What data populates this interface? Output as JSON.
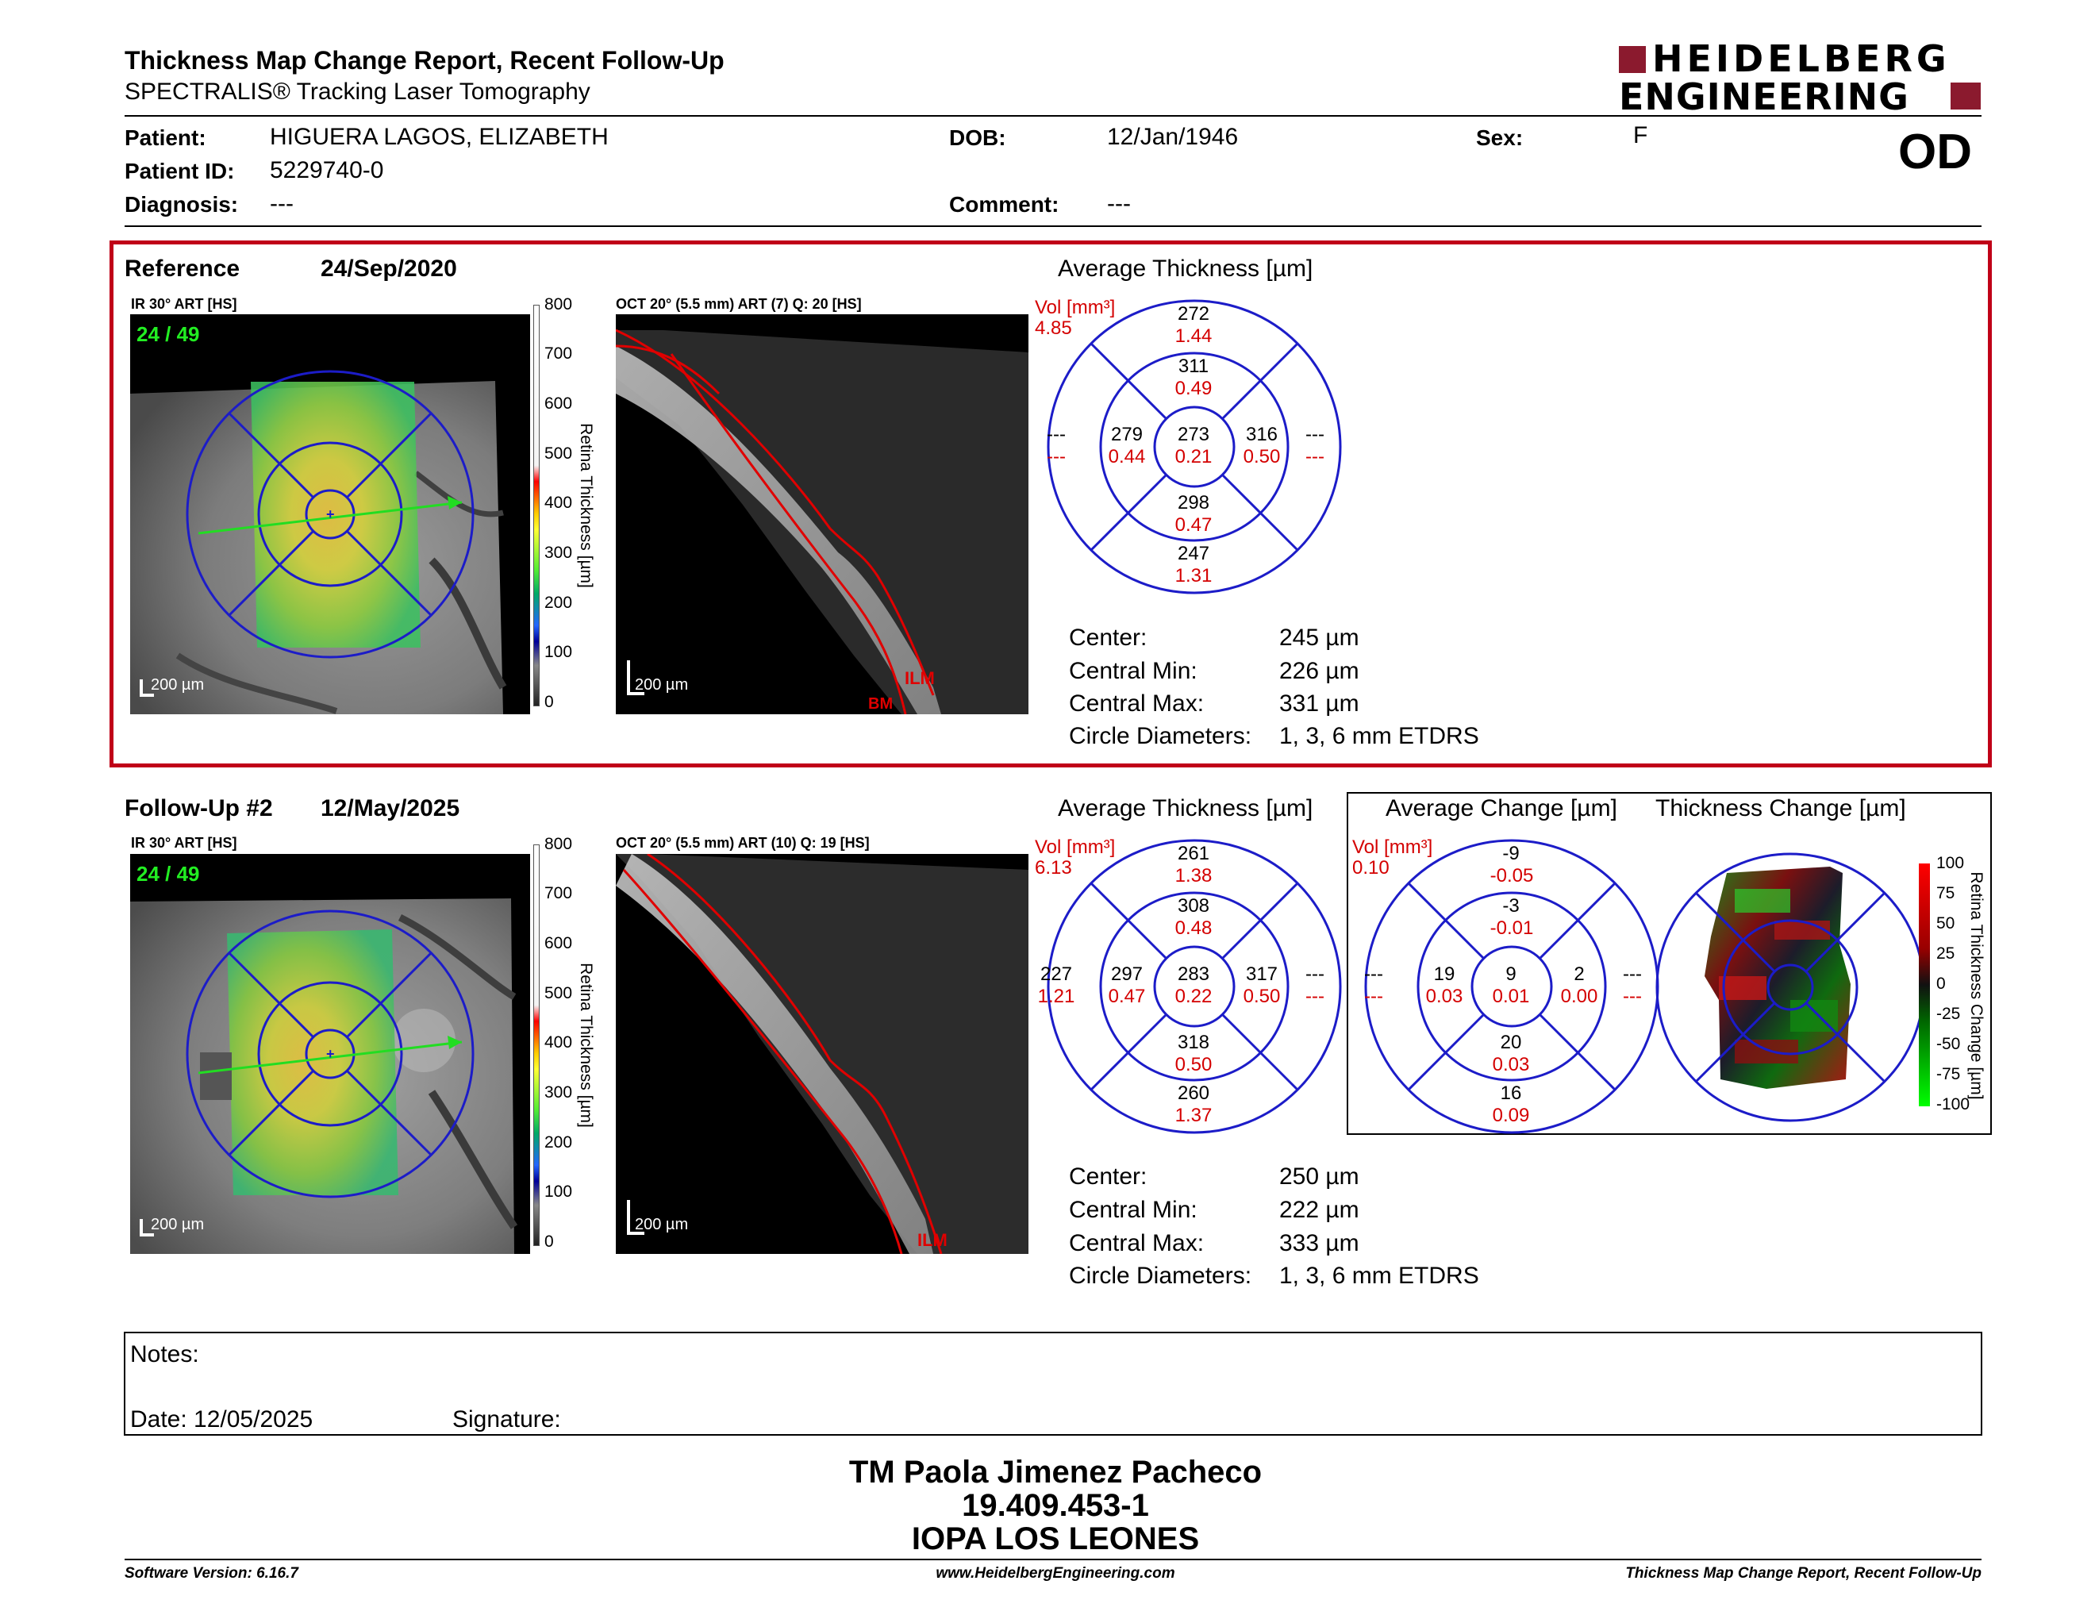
{
  "report": {
    "title": "Thickness Map Change Report, Recent Follow-Up",
    "subtitle": "SPECTRALIS® Tracking Laser Tomography",
    "brand_line1": "HEIDELBERG",
    "brand_line2": "ENGINEERING",
    "eye": "OD"
  },
  "patient": {
    "patient_label": "Patient:",
    "patient_value": "HIGUERA LAGOS, ELIZABETH",
    "id_label": "Patient ID:",
    "id_value": "5229740-0",
    "diagnosis_label": "Diagnosis:",
    "diagnosis_value": "---",
    "dob_label": "DOB:",
    "dob_value": "12/Jan/1946",
    "comment_label": "Comment:",
    "comment_value": "---",
    "sex_label": "Sex:",
    "sex_value": "F"
  },
  "reference": {
    "heading": "Reference",
    "date": "24/Sep/2020",
    "ir_label": "IR 30° ART [HS]",
    "ir_counter": "24 / 49",
    "oct_label": "OCT 20° (5.5 mm) ART (7) Q: 20 [HS]",
    "scale_bar": "200 µm",
    "oct_scale_bar": "200 µm",
    "ilm": "ILM",
    "bm": "BM",
    "avg_title": "Average Thickness [µm]",
    "vol_label": "Vol [mm³]",
    "vol_total": "4.85",
    "etdrs": {
      "outer_top": "272",
      "outer_top_v": "1.44",
      "inner_top": "311",
      "inner_top_v": "0.49",
      "outer_left": "---",
      "outer_left_v": "---",
      "inner_left": "279",
      "inner_left_v": "0.44",
      "center": "273",
      "center_v": "0.21",
      "inner_right": "316",
      "inner_right_v": "0.50",
      "outer_right": "---",
      "outer_right_v": "---",
      "inner_bottom": "298",
      "inner_bottom_v": "0.47",
      "outer_bottom": "247",
      "outer_bottom_v": "1.31"
    },
    "stats": {
      "center_label": "Center:",
      "center_value": "245 µm",
      "min_label": "Central Min:",
      "min_value": "226 µm",
      "max_label": "Central Max:",
      "max_value": "331 µm",
      "diam_label": "Circle Diameters:",
      "diam_value": "1, 3, 6 mm ETDRS"
    }
  },
  "followup": {
    "heading": "Follow-Up #2",
    "date": "12/May/2025",
    "ir_label": "IR 30° ART [HS]",
    "ir_counter": "24 / 49",
    "oct_label": "OCT 20° (5.5 mm) ART (10) Q: 19 [HS]",
    "scale_bar": "200 µm",
    "oct_scale_bar": "200 µm",
    "ilm": "ILM",
    "avg_title": "Average Thickness [µm]",
    "vol_label": "Vol [mm³]",
    "vol_total": "6.13",
    "etdrs": {
      "outer_top": "261",
      "outer_top_v": "1.38",
      "inner_top": "308",
      "inner_top_v": "0.48",
      "outer_left": "227",
      "outer_left_v": "1.21",
      "inner_left": "297",
      "inner_left_v": "0.47",
      "center": "283",
      "center_v": "0.22",
      "inner_right": "317",
      "inner_right_v": "0.50",
      "outer_right": "---",
      "outer_right_v": "---",
      "inner_bottom": "318",
      "inner_bottom_v": "0.50",
      "outer_bottom": "260",
      "outer_bottom_v": "1.37"
    },
    "change_title": "Average Change [µm]",
    "change_vol_label": "Vol [mm³]",
    "change_vol_total": "0.10",
    "change": {
      "outer_top": "-9",
      "outer_top_v": "-0.05",
      "inner_top": "-3",
      "inner_top_v": "-0.01",
      "outer_left": "---",
      "outer_left_v": "---",
      "inner_left": "19",
      "inner_left_v": "0.03",
      "center": "9",
      "center_v": "0.01",
      "inner_right": "2",
      "inner_right_v": "0.00",
      "outer_right": "---",
      "outer_right_v": "---",
      "inner_bottom": "20",
      "inner_bottom_v": "0.03",
      "outer_bottom": "16",
      "outer_bottom_v": "0.09"
    },
    "thick_change_title": "Thickness Change [µm]",
    "stats": {
      "center_label": "Center:",
      "center_value": "250 µm",
      "min_label": "Central Min:",
      "min_value": "222 µm",
      "max_label": "Central Max:",
      "max_value": "333 µm",
      "diam_label": "Circle Diameters:",
      "diam_value": "1, 3, 6 mm ETDRS"
    }
  },
  "thickness_scale": {
    "title": "Retina Thickness [µm]",
    "ticks": [
      "800",
      "700",
      "600",
      "500",
      "400",
      "300",
      "200",
      "100",
      "0"
    ]
  },
  "change_scale": {
    "title": "Retina Thickness Change [µm]",
    "ticks": [
      "100",
      "75",
      "50",
      "25",
      "0",
      "-25",
      "-50",
      "-75",
      "-100"
    ]
  },
  "notes": {
    "notes_label": "Notes:",
    "date_label": "Date: 12/05/2025",
    "signature_label": "Signature:"
  },
  "signer": {
    "name": "TM Paola Jimenez Pacheco",
    "id": "19.409.453-1",
    "institution": "IOPA LOS LEONES"
  },
  "footer": {
    "software": "Software Version: 6.16.7",
    "website": "www.HeidelbergEngineering.com",
    "report_name": "Thickness Map Change Report, Recent Follow-Up"
  },
  "colors": {
    "frame_red": "#c00018",
    "brand_red": "#8b1a2e",
    "etdrs_blue": "#1c1cc8",
    "value_red": "#d40000"
  }
}
